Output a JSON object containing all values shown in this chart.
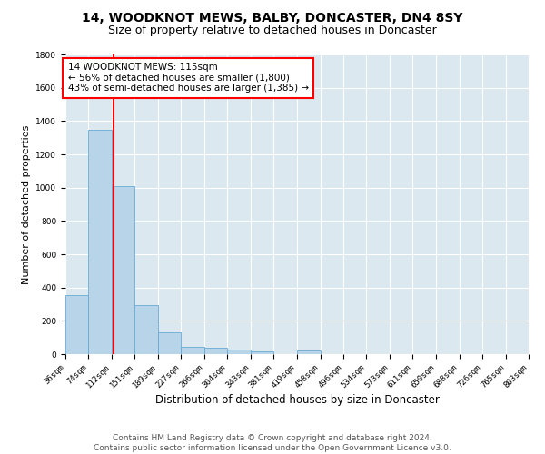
{
  "title": "14, WOODKNOT MEWS, BALBY, DONCASTER, DN4 8SY",
  "subtitle": "Size of property relative to detached houses in Doncaster",
  "xlabel": "Distribution of detached houses by size in Doncaster",
  "ylabel": "Number of detached properties",
  "bar_color": "#b8d4e8",
  "bar_edge_color": "#6aaad4",
  "bg_color": "#dce8f0",
  "grid_color": "white",
  "vline_x": 115,
  "vline_color": "red",
  "annotation_text": "14 WOODKNOT MEWS: 115sqm\n← 56% of detached houses are smaller (1,800)\n43% of semi-detached houses are larger (1,385) →",
  "annotation_box_color": "white",
  "annotation_box_edge": "red",
  "bin_edges": [
    36,
    74,
    112,
    151,
    189,
    227,
    266,
    304,
    343,
    381,
    419,
    458,
    496,
    534,
    573,
    611,
    650,
    688,
    726,
    765,
    803
  ],
  "bin_counts": [
    355,
    1345,
    1010,
    295,
    130,
    42,
    38,
    25,
    18,
    0,
    20,
    0,
    0,
    0,
    0,
    0,
    0,
    0,
    0,
    0
  ],
  "tick_labels": [
    "36sqm",
    "74sqm",
    "112sqm",
    "151sqm",
    "189sqm",
    "227sqm",
    "266sqm",
    "304sqm",
    "343sqm",
    "381sqm",
    "419sqm",
    "458sqm",
    "496sqm",
    "534sqm",
    "573sqm",
    "611sqm",
    "650sqm",
    "688sqm",
    "726sqm",
    "765sqm",
    "803sqm"
  ],
  "ylim": [
    0,
    1800
  ],
  "yticks": [
    0,
    200,
    400,
    600,
    800,
    1000,
    1200,
    1400,
    1600,
    1800
  ],
  "footer_text": "Contains HM Land Registry data © Crown copyright and database right 2024.\nContains public sector information licensed under the Open Government Licence v3.0.",
  "title_fontsize": 10,
  "subtitle_fontsize": 9,
  "xlabel_fontsize": 8.5,
  "ylabel_fontsize": 8,
  "tick_fontsize": 6.5,
  "footer_fontsize": 6.5,
  "annot_fontsize": 7.5
}
